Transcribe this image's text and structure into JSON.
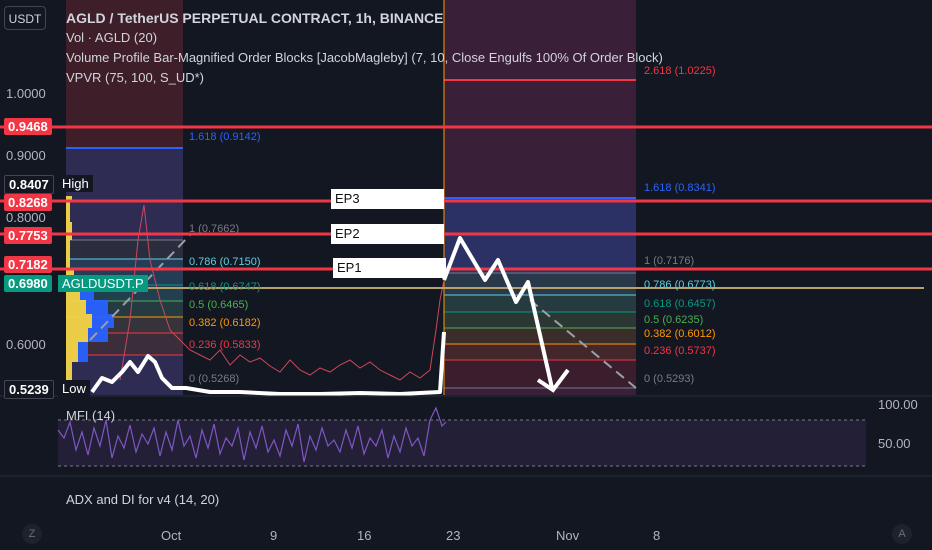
{
  "currency_button": "USDT",
  "legend": {
    "title": "AGLD / TetherUS PERPETUAL CONTRACT, 1h, BINANCE",
    "vol": "Vol · AGLD (20)",
    "indicator": "Volume Profile Bar-Magnified Order Blocks [JacobMagleby] (7, 10, Close Engulfs 100% Of Order Block)",
    "vpvr": "VPVR (75, 100, S_UD*)"
  },
  "price_axis": [
    "1.0000",
    "0.9000",
    "0.8000",
    "0.6000"
  ],
  "price_tags": [
    {
      "label": "0.9468",
      "color": "#f23645"
    },
    {
      "label": "0.8407",
      "color": "#131722"
    },
    {
      "label": "0.8268",
      "color": "#f23645"
    },
    {
      "label": "0.7753",
      "color": "#f23645"
    },
    {
      "label": "0.7182",
      "color": "#f23645"
    },
    {
      "label": "0.6980",
      "color": "#089981"
    },
    {
      "label": "0.5239",
      "color": "#131722"
    }
  ],
  "chart_labels": {
    "high": "High",
    "low": "Low",
    "symbol": "AGLDUSDT.P"
  },
  "entry_points": [
    "EP3",
    "EP2",
    "EP1"
  ],
  "fib_left": [
    {
      "text": "1.618 (0.9142)",
      "color": "#2962ff"
    },
    {
      "text": "1 (0.7662)",
      "color": "#787b86"
    },
    {
      "text": "0.786 (0.7150)",
      "color": "#5fd0e0"
    },
    {
      "text": "0.618 (0.6747)",
      "color": "#089981"
    },
    {
      "text": "0.5 (0.6465)",
      "color": "#4caf50"
    },
    {
      "text": "0.382 (0.6182)",
      "color": "#ff9800"
    },
    {
      "text": "0.236 (0.5833)",
      "color": "#f23645"
    },
    {
      "text": "0 (0.5268)",
      "color": "#787b86"
    }
  ],
  "fib_right": [
    {
      "text": "2.618 (1.0225)",
      "color": "#f23645"
    },
    {
      "text": "1.618 (0.8341)",
      "color": "#2962ff"
    },
    {
      "text": "1 (0.7176)",
      "color": "#787b86"
    },
    {
      "text": "0.786 (0.6773)",
      "color": "#5fd0e0"
    },
    {
      "text": "0.618 (0.6457)",
      "color": "#089981"
    },
    {
      "text": "0.5 (0.6235)",
      "color": "#4caf50"
    },
    {
      "text": "0.382 (0.6012)",
      "color": "#ff9800"
    },
    {
      "text": "0.236 (0.5737)",
      "color": "#f23645"
    },
    {
      "text": "0 (0.5293)",
      "color": "#787b86"
    }
  ],
  "mfi": {
    "label": "MFI (14)",
    "levels": [
      "100.00",
      "50.00"
    ]
  },
  "adx_label": "ADX and DI for v4 (14, 20)",
  "time_axis": [
    "Oct",
    "9",
    "16",
    "23",
    "Nov",
    "8"
  ],
  "corner_left": "Z",
  "corner_right": "A",
  "colors": {
    "background": "#131722",
    "red_line": "#f23645",
    "blue_line": "#2962ff",
    "orange_line": "#ff9800",
    "mfi_line": "#7e57c2"
  }
}
